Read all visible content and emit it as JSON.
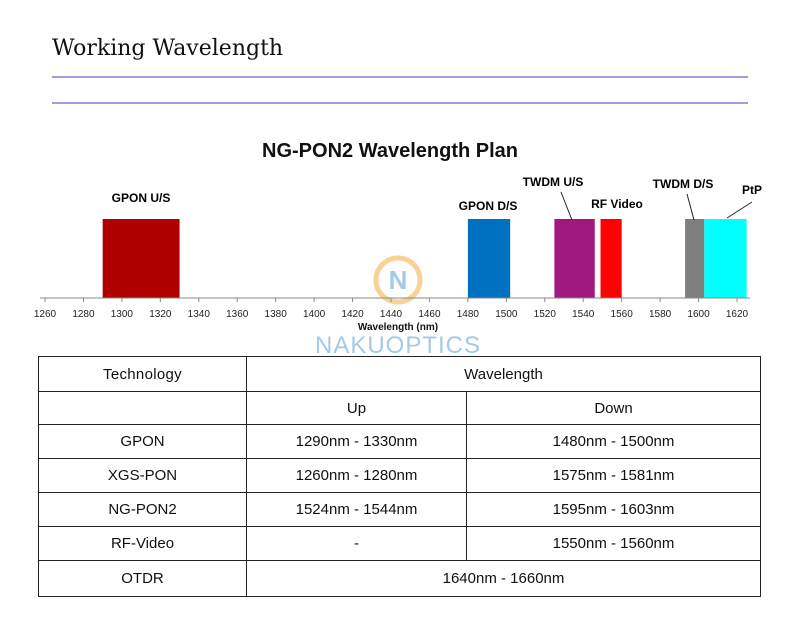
{
  "page": {
    "title": "Working Wavelength"
  },
  "chart_data": {
    "type": "bar",
    "title": "NG-PON2 Wavelength Plan",
    "xlabel": "Wavelength (nm)",
    "xlim": [
      1260,
      1620
    ],
    "xticks": [
      1260,
      1280,
      1300,
      1320,
      1340,
      1360,
      1380,
      1400,
      1420,
      1440,
      1460,
      1480,
      1500,
      1520,
      1540,
      1560,
      1580,
      1600,
      1620
    ],
    "bands": [
      {
        "name": "GPON U/S",
        "start": 1290,
        "end": 1330,
        "color": "#b00000"
      },
      {
        "name": "GPON D/S",
        "start": 1480,
        "end": 1502,
        "color": "#0070c0"
      },
      {
        "name": "TWDM U/S",
        "start": 1525,
        "end": 1546,
        "color": "#a0197e"
      },
      {
        "name": "RF Video",
        "start": 1549,
        "end": 1560,
        "color": "#ff0000"
      },
      {
        "name": "TWDM D/S",
        "start": 1593,
        "end": 1603,
        "color": "#7f7f7f"
      },
      {
        "name": "PtP",
        "start": 1603,
        "end": 1625,
        "color": "#00ffff"
      }
    ],
    "watermark": "NAKUOPTICS"
  },
  "table": {
    "header": {
      "technology": "Technology",
      "wavelength": "Wavelength",
      "up": "Up",
      "down": "Down"
    },
    "rows": [
      {
        "tech": "GPON",
        "up": "1290nm - 1330nm",
        "down": "1480nm - 1500nm"
      },
      {
        "tech": "XGS-PON",
        "up": "1260nm - 1280nm",
        "down": "1575nm - 1581nm"
      },
      {
        "tech": "NG-PON2",
        "up": "1524nm - 1544nm",
        "down": "1595nm - 1603nm"
      },
      {
        "tech": "RF-Video",
        "up": "-",
        "down": "1550nm - 1560nm"
      }
    ],
    "otdr": {
      "tech": "OTDR",
      "range": "1640nm - 1660nm"
    }
  }
}
